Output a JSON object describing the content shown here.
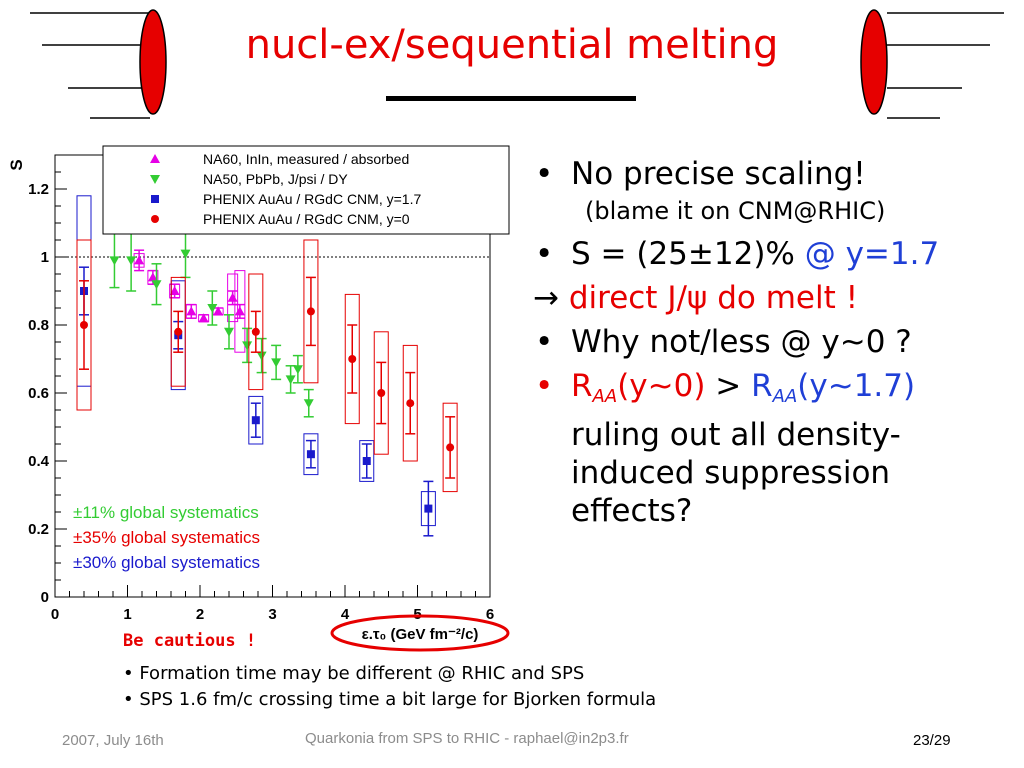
{
  "slide": {
    "title": "nucl-ex/sequential melting",
    "bullets": {
      "b1": "No precise scaling!",
      "b1_sub": "(blame it on CNM@RHIC)",
      "b2_a": "S = (25±12)% ",
      "b2_b": "@ y=1.7",
      "b3_arrow": "→",
      "b3_text": " direct J/ψ do melt !",
      "b4": "Why not/less @ y~0 ?",
      "b5_raa1": "R",
      "b5_sub1": "AA",
      "b5_p1": "(y~0)",
      "b5_gt": " > ",
      "b5_raa2": "R",
      "b5_sub2": "AA",
      "b5_p2": "(y~1.7)",
      "b5_rest": "ruling out all density-induced suppression effects?"
    },
    "caution": "Be cautious !",
    "notes": [
      "• Formation time may be different @ RHIC and SPS",
      "• SPS 1.6 fm/c crossing time a bit large for Bjorken formula"
    ],
    "footer": {
      "date": "2007, July 16th",
      "center": "Quarkonia from SPS to RHIC - raphael@in2p3.fr",
      "page": "23/29"
    }
  },
  "chart_data": {
    "type": "scatter",
    "ylabel": "S",
    "xlabel": "ε.τ₀ (GeV fm⁻²/c)",
    "xlim": [
      0,
      6
    ],
    "ylim": [
      0,
      1.3
    ],
    "xticks": [
      "0",
      "1",
      "2",
      "3",
      "4",
      "5",
      "6"
    ],
    "yticks": [
      "0",
      "0.2",
      "0.4",
      "0.6",
      "0.8",
      "1",
      "1.2"
    ],
    "reference_line": 1,
    "colors": {
      "na60": "#e600e6",
      "na50": "#33cc33",
      "phenix_fwd": "#1a1acc",
      "phenix_mid": "#e60000"
    },
    "series": [
      {
        "name": "NA60, InIn, measured / absorbed",
        "marker": "triangle-up",
        "color": "#e600e6",
        "x": [
          1.16,
          1.35,
          1.65,
          1.88,
          2.05,
          2.25,
          2.45,
          2.55
        ],
        "y": [
          0.99,
          0.94,
          0.9,
          0.84,
          0.82,
          0.84,
          0.88,
          0.84
        ],
        "err": [
          0.03,
          0.02,
          0.02,
          0.02,
          0.01,
          0.01,
          0.02,
          0.02
        ],
        "sys": [
          0.02,
          0.02,
          0.02,
          0.02,
          0.01,
          0.01,
          0.07,
          0.12
        ]
      },
      {
        "name": "NA50, PbPb, J/psi / DY",
        "marker": "triangle-down",
        "color": "#33cc33",
        "x": [
          0.82,
          1.05,
          1.4,
          1.8,
          2.17,
          2.4,
          2.65,
          2.85,
          3.05,
          3.25,
          3.35,
          3.5
        ],
        "y": [
          0.99,
          0.99,
          0.92,
          1.01,
          0.85,
          0.78,
          0.74,
          0.71,
          0.69,
          0.64,
          0.67,
          0.57
        ],
        "err": [
          0.08,
          0.09,
          0.06,
          0.07,
          0.05,
          0.05,
          0.05,
          0.05,
          0.05,
          0.04,
          0.04,
          0.04
        ]
      },
      {
        "name": "PHENIX AuAu / RGdC CNM, y=1.7",
        "marker": "square",
        "color": "#1a1acc",
        "x": [
          0.4,
          1.7,
          2.77,
          3.53,
          4.3,
          5.15
        ],
        "y": [
          0.9,
          0.77,
          0.52,
          0.42,
          0.4,
          0.26
        ],
        "err": [
          0.07,
          0.04,
          0.05,
          0.04,
          0.05,
          0.08
        ],
        "sys": [
          0.28,
          0.16,
          0.07,
          0.06,
          0.06,
          0.05
        ]
      },
      {
        "name": "PHENIX AuAu / RGdC CNM, y=0",
        "marker": "circle",
        "color": "#e60000",
        "x": [
          0.4,
          1.7,
          2.77,
          3.53,
          4.1,
          4.5,
          4.9,
          5.45
        ],
        "y": [
          0.8,
          0.78,
          0.78,
          0.84,
          0.7,
          0.6,
          0.57,
          0.44
        ],
        "err": [
          0.13,
          0.06,
          0.06,
          0.1,
          0.1,
          0.09,
          0.09,
          0.09
        ],
        "sys": [
          0.25,
          0.16,
          0.17,
          0.21,
          0.19,
          0.18,
          0.17,
          0.13
        ]
      }
    ],
    "annotations": [
      {
        "text": "±11% global systematics",
        "color": "#33cc33"
      },
      {
        "text": "±35% global systematics",
        "color": "#e60000"
      },
      {
        "text": "±30% global systematics",
        "color": "#1a1acc"
      }
    ]
  }
}
